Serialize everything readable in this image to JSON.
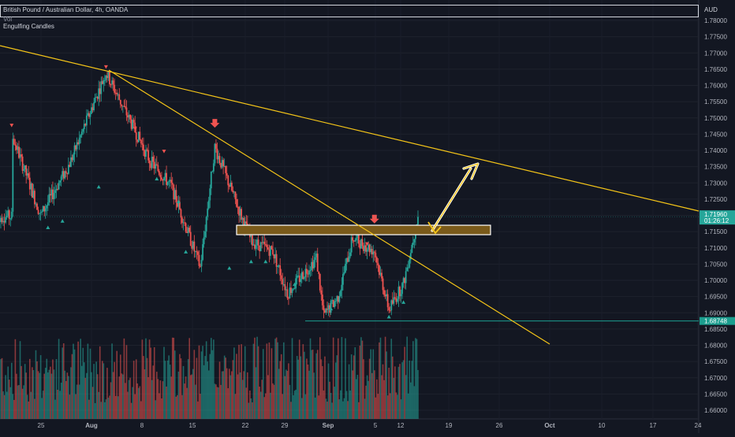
{
  "header": {
    "symbol": "British Pound / Australian Dollar, 4h, OANDA",
    "vol_label": "Vol",
    "indicator": "Engulfing Candles",
    "currency": "AUD"
  },
  "colors": {
    "background": "#131722",
    "bull": "#26a69a",
    "bear": "#ef5350",
    "trendline": "#f5c518",
    "zone_fill": "#7a5a1a",
    "zone_border": "#ffffff",
    "signal_up": "#26a69a",
    "signal_down": "#ef5350",
    "current_price_bg": "#26a69a",
    "support_price_bg": "#1c9e8f",
    "arrow_outline": "#ffffff"
  },
  "chart_data": {
    "type": "candlestick",
    "interval": "4h",
    "ylim": [
      1.6575,
      1.7805
    ],
    "y_ticks": [
      "1.78000",
      "1.77500",
      "1.77000",
      "1.76500",
      "1.76000",
      "1.75500",
      "1.75000",
      "1.74500",
      "1.74000",
      "1.73500",
      "1.73000",
      "1.72500",
      "1.72000",
      "1.71500",
      "1.71000",
      "1.70500",
      "1.70000",
      "1.69500",
      "1.69000",
      "1.68500",
      "1.68000",
      "1.67500",
      "1.67000",
      "1.66500",
      "1.66000"
    ],
    "x_ticks": [
      "25",
      "Aug",
      "8",
      "15",
      "22",
      "29",
      "Sep",
      "5",
      "12",
      "19",
      "26",
      "Oct",
      "10",
      "17",
      "24"
    ],
    "current_price": {
      "value": "1.71960",
      "countdown": "01:26:12"
    },
    "support_price": {
      "value": "1.68748"
    },
    "swing_points": [
      {
        "date": "Jul 21",
        "price": 1.745
      },
      {
        "date": "Jul 25",
        "price": 1.72
      },
      {
        "date": "Jul 29",
        "price": 1.736
      },
      {
        "date": "Aug 3",
        "price": 1.764
      },
      {
        "date": "Aug 9",
        "price": 1.737
      },
      {
        "date": "Aug 12",
        "price": 1.729
      },
      {
        "date": "Aug 16",
        "price": 1.704
      },
      {
        "date": "Aug 18",
        "price": 1.741
      },
      {
        "date": "Aug 23",
        "price": 1.712
      },
      {
        "date": "Aug 26",
        "price": 1.709
      },
      {
        "date": "Aug 28",
        "price": 1.696
      },
      {
        "date": "Sep 1",
        "price": 1.707
      },
      {
        "date": "Sep 2",
        "price": 1.689
      },
      {
        "date": "Sep 4",
        "price": 1.695
      },
      {
        "date": "Sep 6",
        "price": 1.713
      },
      {
        "date": "Sep 9",
        "price": 1.709
      },
      {
        "date": "Sep 11",
        "price": 1.691
      },
      {
        "date": "Sep 13",
        "price": 1.699
      },
      {
        "date": "Sep 15",
        "price": 1.7196
      }
    ],
    "trendlines": [
      {
        "name": "long",
        "from": {
          "date": "Jul 20",
          "price": 1.7705
        },
        "to": {
          "date": "Oct 28",
          "price": 1.7215
        }
      },
      {
        "name": "steep",
        "from": {
          "date": "Aug 3",
          "price": 1.7655
        },
        "to": {
          "date": "Sep 24",
          "price": 1.682
        }
      }
    ],
    "zone": {
      "from": "Aug 21",
      "to": "Sep 19",
      "top": 1.7155,
      "bottom": 1.714
    },
    "support_line": {
      "from": "Aug 30",
      "price": 1.68748
    }
  }
}
